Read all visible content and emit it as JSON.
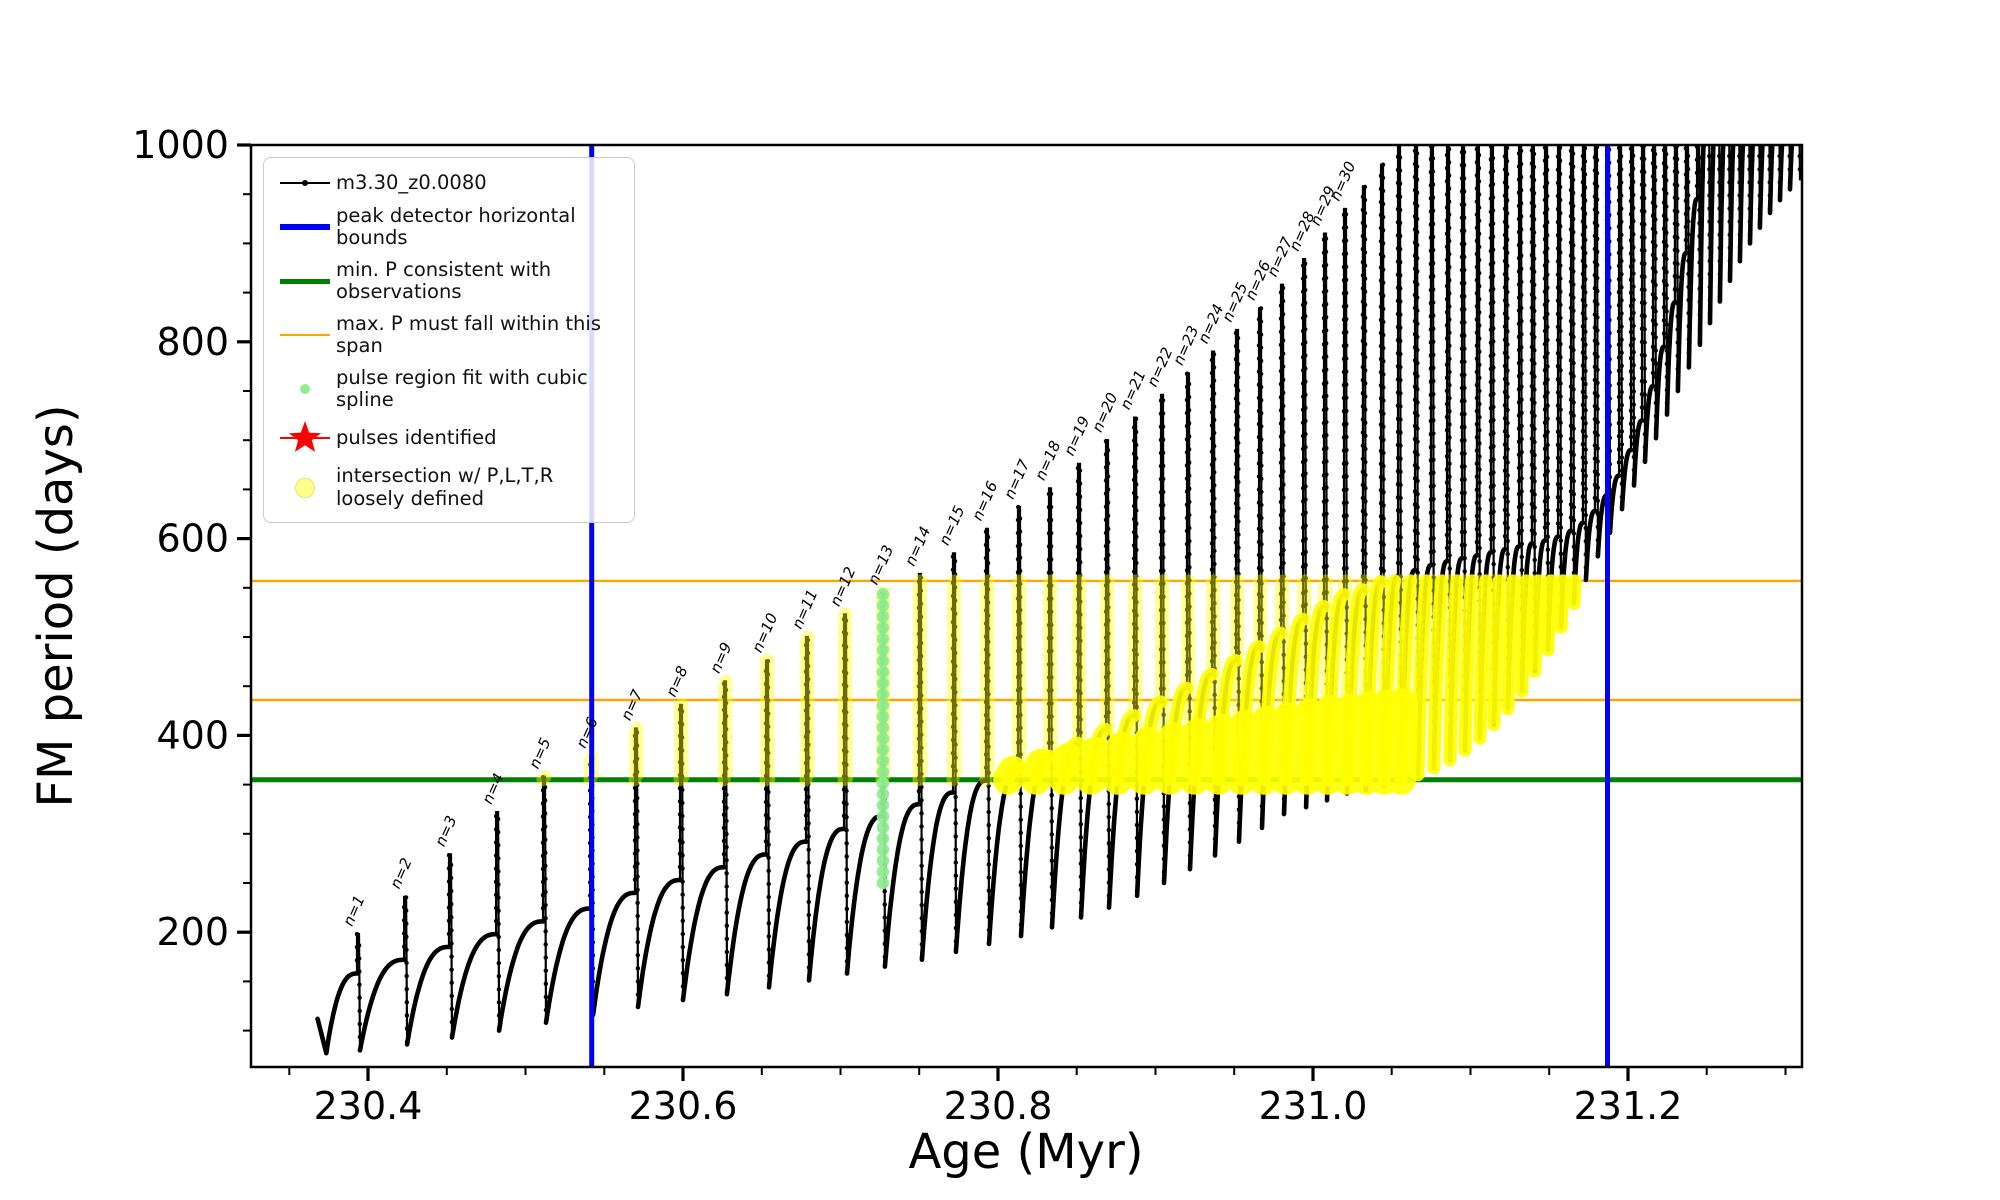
{
  "figure": {
    "background": "#ffffff"
  },
  "axes": {
    "xlabel": "Age (Myr)",
    "ylabel": "FM period (days)",
    "x_tick_labels": [
      "230.4",
      "230.6",
      "230.8",
      "231.0",
      "231.2"
    ],
    "y_tick_labels": [
      "200",
      "400",
      "600",
      "800",
      "1000"
    ]
  },
  "legend": {
    "entries": [
      {
        "label": "m3.30_z0.0080",
        "marker": "black-line-dot"
      },
      {
        "label": "peak detector horizontal bounds",
        "marker": "blue-line"
      },
      {
        "label": "min. P consistent with observations",
        "marker": "green-line"
      },
      {
        "label": "max. P must fall within this span",
        "marker": "orange-line"
      },
      {
        "label": "pulse region fit with cubic spline",
        "marker": "lightgreen-dot"
      },
      {
        "label": "pulses identified",
        "marker": "red-star"
      },
      {
        "label": "intersection w/ P,L,T,R\nloosely defined",
        "marker": "yellow-dot"
      }
    ]
  },
  "chart_data": {
    "type": "line",
    "title": "",
    "xlabel": "Age (Myr)",
    "ylabel": "FM period (days)",
    "series_name": "m3.30_z0.0080",
    "x_range": [
      230.3257,
      231.3105
    ],
    "y_range": [
      63,
      1000
    ],
    "x_ticks": [
      230.4,
      230.6,
      230.8,
      231.0,
      231.2
    ],
    "x_minor_ticks": [
      230.35,
      230.45,
      230.5,
      230.55,
      230.65,
      230.7,
      230.75,
      230.85,
      230.9,
      230.95,
      231.05,
      231.1,
      231.15,
      231.25,
      231.3
    ],
    "y_ticks": [
      200,
      400,
      600,
      800,
      1000
    ],
    "y_minor_ticks": [
      100,
      150,
      250,
      300,
      350,
      450,
      500,
      550,
      650,
      700,
      750,
      850,
      900,
      950
    ],
    "legend_position": "upper left",
    "grid": false,
    "colors": {
      "track": "#000000",
      "peak_bounds": "#0000ff",
      "min_p": "#008000",
      "max_p_span": "#ffa500",
      "pulse_spline": "#90ee90",
      "pulses": "#ff0000",
      "intersection": "#ffff00"
    },
    "reference_lines": {
      "peak_detector_bounds_age": [
        230.542,
        231.187
      ],
      "min_p_days": 355,
      "max_p_span_days": [
        436,
        557
      ]
    },
    "pulse_spline_fit": {
      "age": 230.7263,
      "period_min": 250,
      "period_max": 545
    },
    "pulse_labels": [
      "n=1",
      "n=2",
      "n=3",
      "n=4",
      "n=5",
      "n=6",
      "n=7",
      "n=8",
      "n=9",
      "n=10",
      "n=11",
      "n=12",
      "n=13",
      "n=14",
      "n=15",
      "n=16",
      "n=17",
      "n=18",
      "n=19",
      "n=20",
      "n=21",
      "n=22",
      "n=23",
      "n=24",
      "n=25",
      "n=26",
      "n=27",
      "n=28",
      "n=29",
      "n=30"
    ],
    "track_start": {
      "age": 230.368,
      "period": 112,
      "dip_age": 230.3735,
      "dip_period": 77
    },
    "cycles_format": [
      "age_at_spike",
      "plateau_period",
      "spike_top_period",
      "dip_after_period"
    ],
    "cycles": [
      [
        230.393,
        158,
        198,
        80
      ],
      [
        230.4229,
        172,
        236,
        86
      ],
      [
        230.4514,
        185,
        279,
        93
      ],
      [
        230.4813,
        198,
        322,
        100
      ],
      [
        230.5111,
        211,
        358,
        108
      ],
      [
        230.541,
        224,
        379,
        116
      ],
      [
        230.5695,
        240,
        407,
        124
      ],
      [
        230.5981,
        253,
        431,
        131
      ],
      [
        230.626,
        266,
        455,
        137
      ],
      [
        230.6527,
        279,
        476,
        144
      ],
      [
        230.6781,
        292,
        500,
        151
      ],
      [
        230.7022,
        305,
        523,
        158
      ],
      [
        230.7263,
        318,
        545,
        165
      ],
      [
        230.7498,
        330,
        564,
        172
      ],
      [
        230.7714,
        342,
        585,
        180
      ],
      [
        230.7924,
        354,
        610,
        188
      ],
      [
        230.8127,
        366,
        632,
        196
      ],
      [
        230.8324,
        379,
        651,
        205
      ],
      [
        230.8508,
        392,
        676,
        215
      ],
      [
        230.8686,
        406,
        700,
        225
      ],
      [
        230.8864,
        420,
        723,
        237
      ],
      [
        230.9035,
        434,
        746,
        250
      ],
      [
        230.92,
        448,
        768,
        264
      ],
      [
        230.9359,
        462,
        790,
        278
      ],
      [
        230.9511,
        476,
        812,
        292
      ],
      [
        230.9657,
        490,
        834,
        306
      ],
      [
        230.9797,
        504,
        858,
        320
      ],
      [
        230.9937,
        518,
        884,
        327
      ],
      [
        231.007,
        531,
        910,
        334
      ],
      [
        231.0197,
        543,
        935,
        341
      ],
      [
        231.0317,
        548,
        958,
        344
      ],
      [
        231.0432,
        556,
        980,
        349
      ],
      [
        231.054,
        562,
        1000,
        354
      ],
      [
        231.0648,
        568,
        1025,
        360
      ],
      [
        231.0749,
        573,
        1025,
        367
      ],
      [
        231.0851,
        577,
        1025,
        375
      ],
      [
        231.0946,
        580,
        1025,
        385
      ],
      [
        231.1041,
        583,
        1025,
        397
      ],
      [
        231.113,
        586,
        1025,
        411
      ],
      [
        231.1219,
        589,
        1025,
        427
      ],
      [
        231.1308,
        592,
        1025,
        445
      ],
      [
        231.139,
        595,
        1025,
        465
      ],
      [
        231.1473,
        598,
        1025,
        487
      ],
      [
        231.1556,
        602,
        1025,
        510
      ],
      [
        231.1638,
        608,
        1025,
        534
      ],
      [
        231.1714,
        616,
        1025,
        558
      ],
      [
        231.179,
        628,
        1025,
        582
      ],
      [
        231.1867,
        644,
        1025,
        606
      ],
      [
        231.1943,
        664,
        1025,
        630
      ],
      [
        231.2019,
        690,
        1025,
        654
      ],
      [
        231.2089,
        720,
        1025,
        678
      ],
      [
        231.2159,
        755,
        1025,
        702
      ],
      [
        231.2229,
        795,
        1025,
        726
      ],
      [
        231.2298,
        840,
        1025,
        750
      ],
      [
        231.2368,
        890,
        1025,
        774
      ],
      [
        231.2438,
        945,
        1025,
        797
      ],
      [
        231.2502,
        1040,
        1060,
        819
      ],
      [
        231.2565,
        1040,
        1060,
        841
      ],
      [
        231.2629,
        1040,
        1060,
        862
      ],
      [
        231.2692,
        1040,
        1060,
        882
      ],
      [
        231.2756,
        1040,
        1060,
        900
      ],
      [
        231.2819,
        1040,
        1060,
        916
      ],
      [
        231.2883,
        1040,
        1060,
        931
      ],
      [
        231.2946,
        1040,
        1060,
        944
      ],
      [
        231.301,
        1040,
        1060,
        955
      ],
      [
        231.3073,
        1040,
        1060,
        964
      ]
    ]
  }
}
